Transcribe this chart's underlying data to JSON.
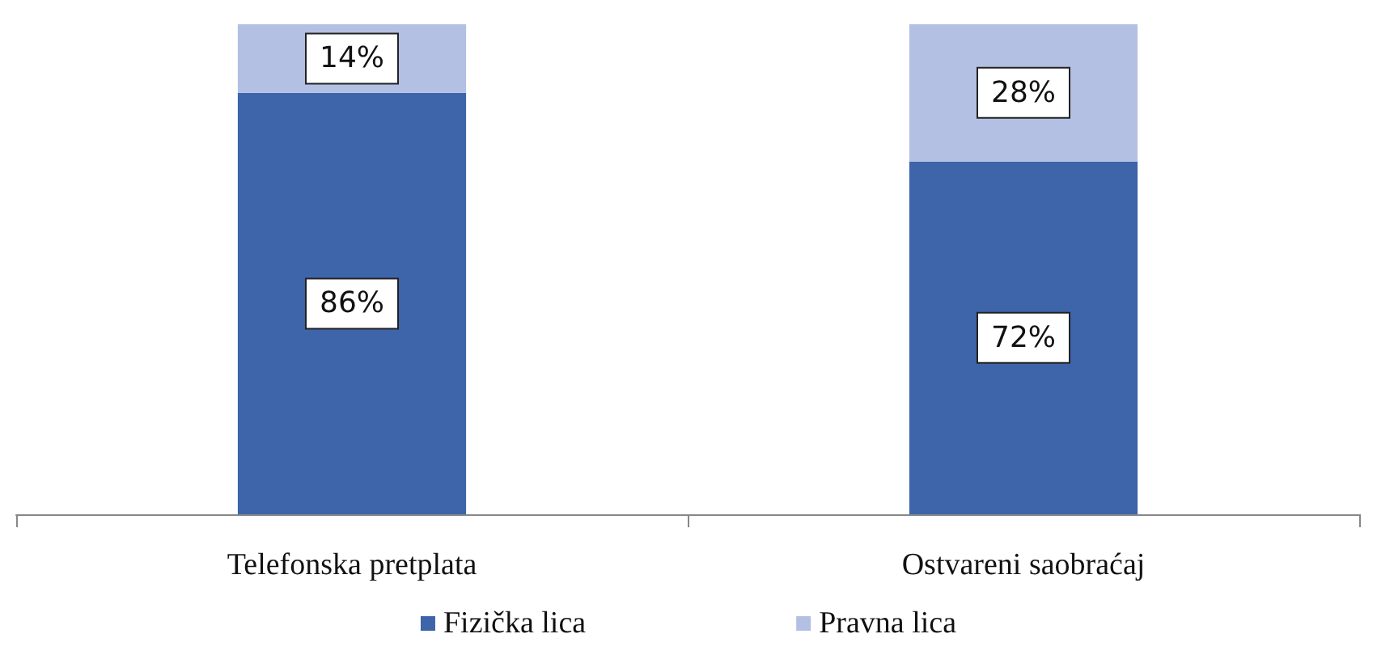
{
  "chart_data": {
    "type": "bar",
    "stacked": true,
    "categories": [
      "Telefonska pretplata",
      "Ostvareni saobraćaj"
    ],
    "series": [
      {
        "name": "Fizička lica",
        "color": "#3e64aa",
        "values": [
          86,
          72
        ],
        "value_labels": [
          "86%",
          "72%"
        ]
      },
      {
        "name": "Pravna lica",
        "color": "#b3c0e3",
        "values": [
          14,
          28
        ],
        "value_labels": [
          "14%",
          "28%"
        ]
      }
    ],
    "legend": "bottom"
  }
}
